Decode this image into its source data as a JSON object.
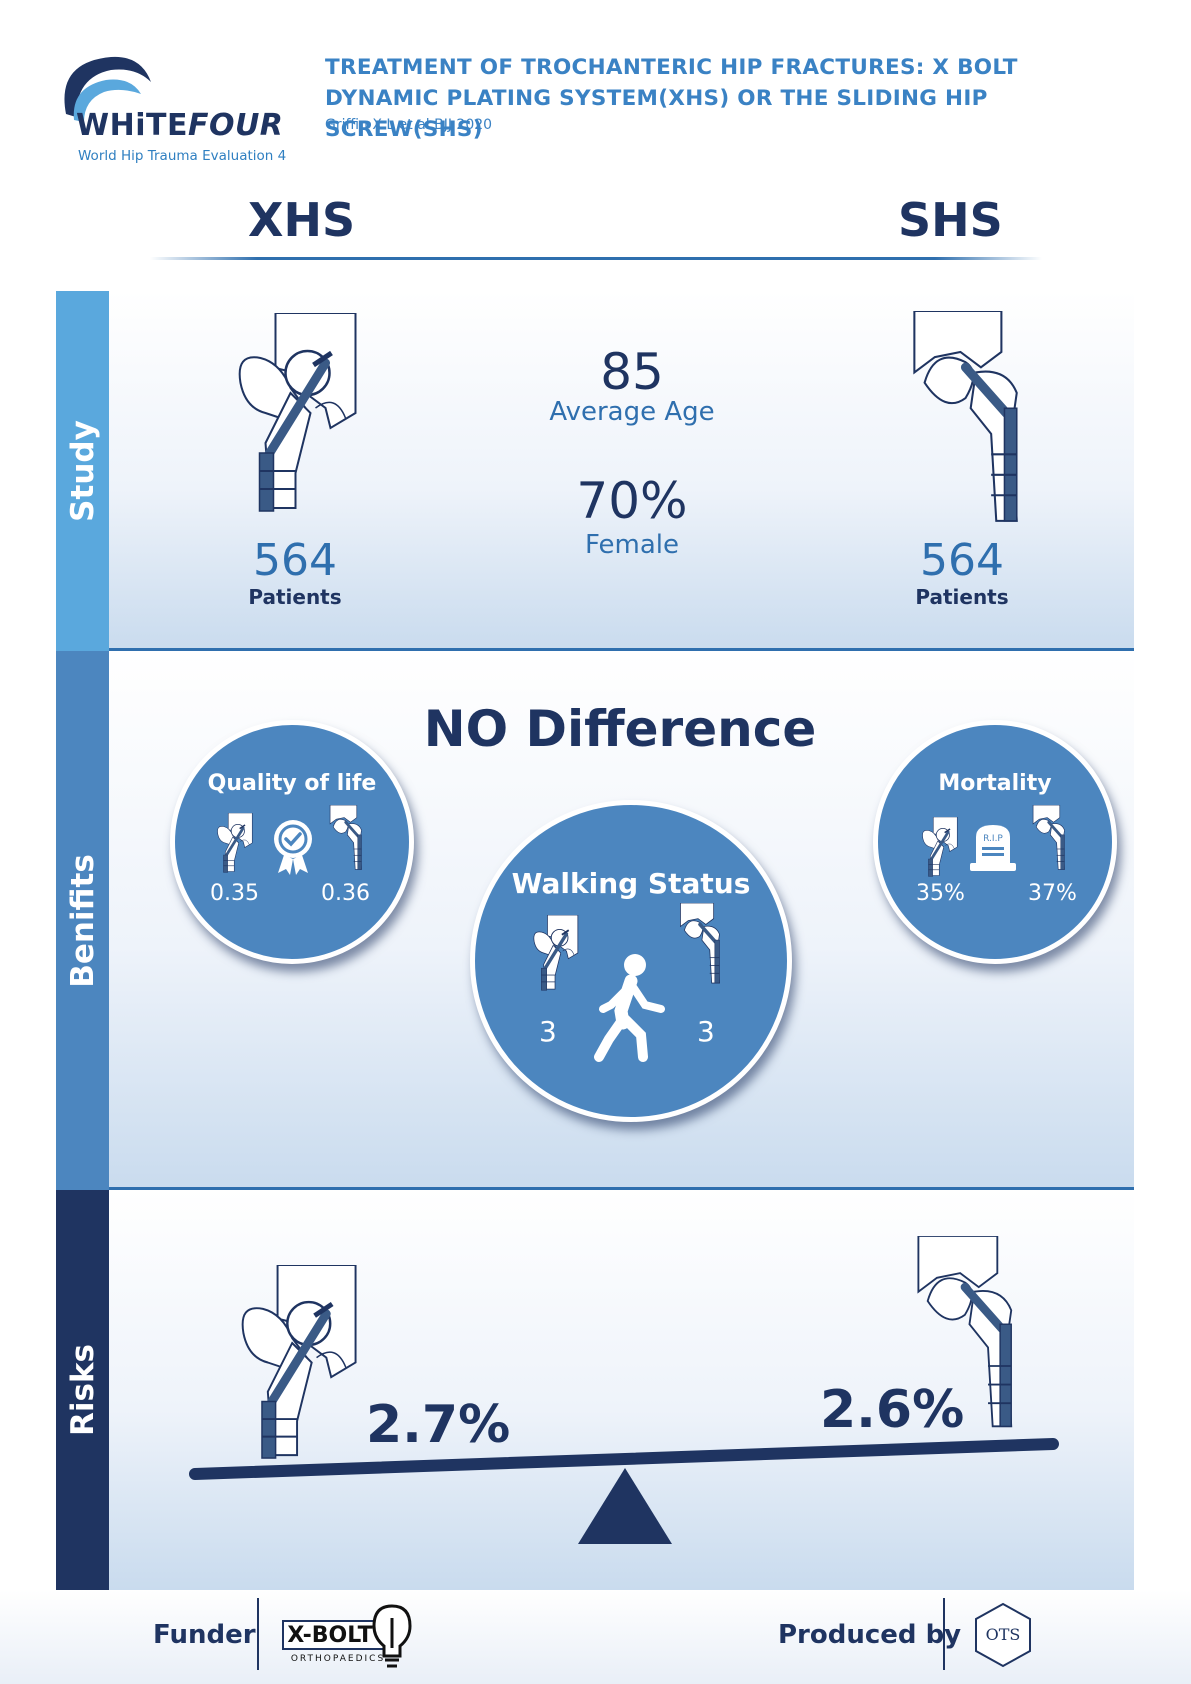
{
  "logo": {
    "brand_white": "WHiTE",
    "brand_four": "FOUR",
    "subtitle": "World Hip Trauma Evaluation 4"
  },
  "header": {
    "title": "TREATMENT OF TROCHANTERIC HIP FRACTURES: X BOLT DYNAMIC PLATING SYSTEM(XHS) OR THE SLIDING HIP SCREW(SHS)",
    "citation": "Griffin X.L et al BJJ 2020"
  },
  "columns": {
    "left": "XHS",
    "right": "SHS"
  },
  "study": {
    "tab": "Study",
    "xhs_patients": "564",
    "shs_patients": "564",
    "patients_label": "Patients",
    "average_age": "85",
    "average_age_label": "Average Age",
    "female": "70%",
    "female_label": "Female"
  },
  "benefits": {
    "tab": "Benifits",
    "headline": "NO Difference",
    "quality_of_life": {
      "title": "Quality of life",
      "xhs": "0.35",
      "shs": "0.36"
    },
    "walking_status": {
      "title": "Walking Status",
      "xhs": "3",
      "shs": "3"
    },
    "mortality": {
      "title": "Mortality",
      "xhs": "35%",
      "shs": "37%",
      "tombstone_text": "R.I.P"
    }
  },
  "risks": {
    "tab": "Risks",
    "xhs": "2.7%",
    "shs": "2.6%"
  },
  "footer": {
    "funder_label": "Funder",
    "funder_logo_text": "X-BOLT",
    "funder_logo_sub": "ORTHOPAEDICS",
    "produced_label": "Produced by",
    "producer_logo_text": "OTS"
  },
  "colors": {
    "navy": "#1f3461",
    "mid_blue": "#4c86bf",
    "light_blue": "#5aa8dd",
    "accent": "#2f6fae"
  },
  "icons": [
    "hip-xhs-icon",
    "hip-shs-icon",
    "award-icon",
    "walking-person-icon",
    "tombstone-icon",
    "seesaw-icon"
  ]
}
